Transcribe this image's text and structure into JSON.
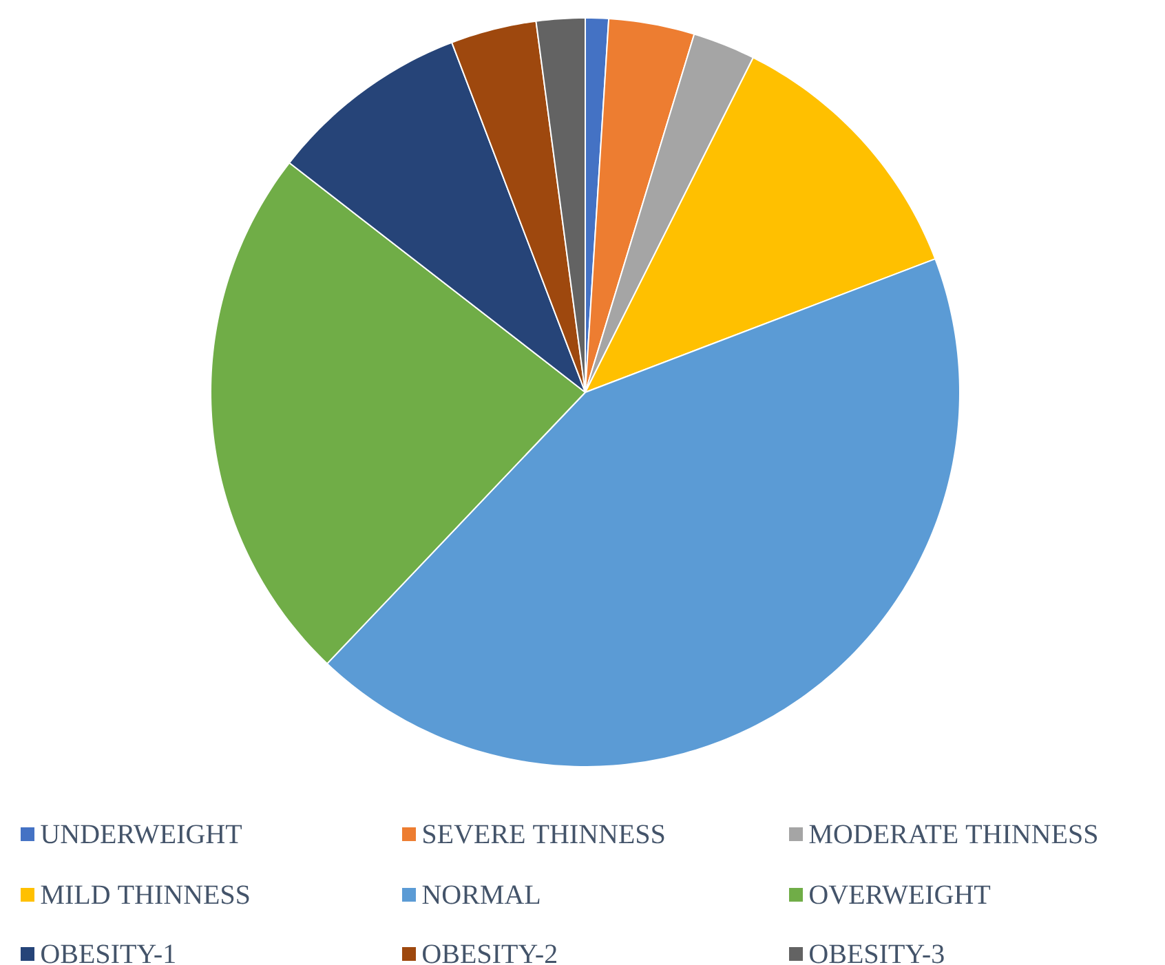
{
  "chart_data": {
    "type": "pie",
    "legend": "bottom",
    "categories": [
      "UNDERWEIGHT",
      "SEVERE THINNESS",
      "MODERATE THINNESS",
      "MILD THINNESS",
      "NORMAL",
      "OVERWEIGHT",
      "OBESITY-1",
      "OBESITY-2",
      "OBESITY-3"
    ],
    "values": [
      1.0,
      3.7,
      2.7,
      11.8,
      42.9,
      23.4,
      8.7,
      3.7,
      2.1
    ],
    "colors": [
      "#4472c4",
      "#ed7d31",
      "#a5a5a5",
      "#ffc000",
      "#5b9bd5",
      "#70ad47",
      "#264478",
      "#9e480e",
      "#636363"
    ]
  }
}
